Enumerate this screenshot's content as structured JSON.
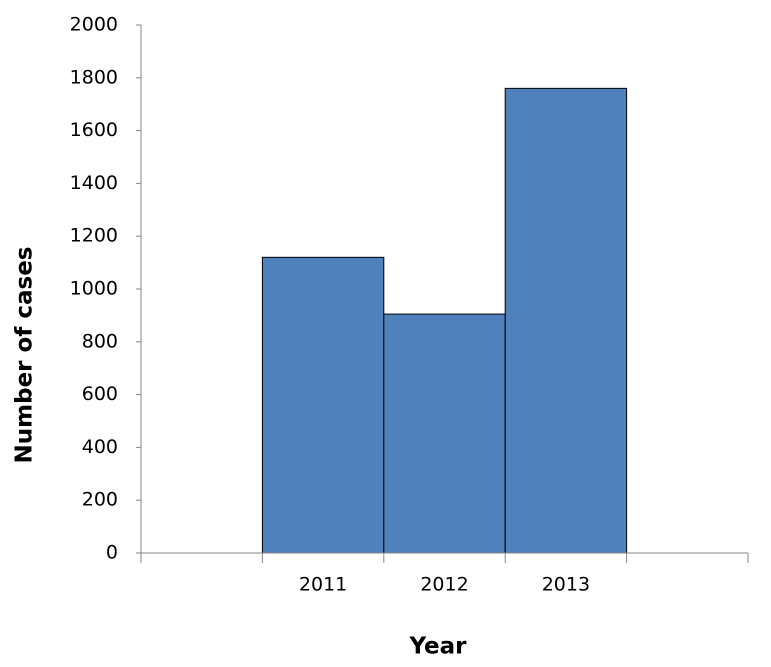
{
  "chart_data": {
    "type": "bar",
    "x_label": "Year",
    "y_label": "Number of cases",
    "categories": [
      null,
      "2011",
      "2012",
      "2013",
      null
    ],
    "values": [
      null,
      1120,
      905,
      1760,
      null
    ],
    "color": "#4f81bd",
    "ylim": [
      0,
      2000
    ],
    "yticks": [
      0,
      200,
      400,
      600,
      800,
      1000,
      1200,
      1400,
      1600,
      1800,
      2000
    ],
    "grid": false
  }
}
